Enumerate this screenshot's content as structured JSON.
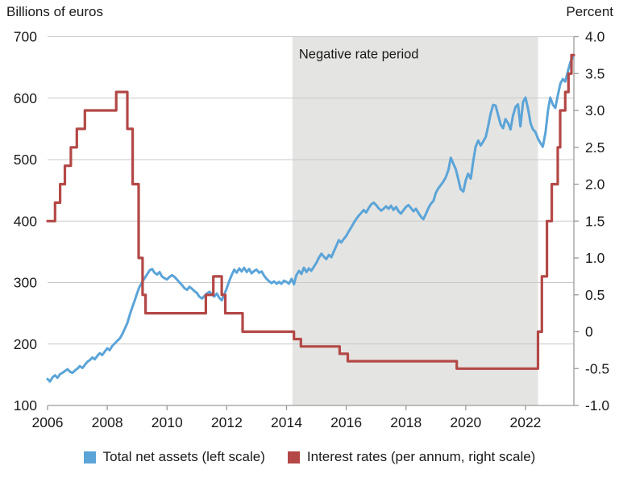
{
  "page": {
    "left_axis_title": "Billions of euros",
    "right_axis_title": "Percent"
  },
  "legend": [
    {
      "label": "Total net assets (left scale)",
      "color": "#5ba4d8"
    },
    {
      "label": "Interest rates (per annum, right scale)",
      "color": "#b34846"
    }
  ],
  "chart_data": {
    "type": "line",
    "annotation": "Negative rate period",
    "shaded_region": {
      "x_start": 2014.2,
      "x_end": 2022.42,
      "color": "#e4e4e2"
    },
    "x_axis": {
      "range": [
        2006,
        2023.62
      ],
      "ticks": [
        2006,
        2008,
        2010,
        2012,
        2014,
        2016,
        2018,
        2020,
        2022
      ]
    },
    "left_axis": {
      "title": "Billions of euros",
      "range": [
        100,
        700
      ],
      "ticks": [
        100,
        200,
        300,
        400,
        500,
        600,
        700
      ]
    },
    "right_axis": {
      "title": "Percent",
      "range": [
        -1.0,
        4.0
      ],
      "ticks": [
        4.0,
        3.5,
        3.0,
        2.5,
        2.0,
        1.5,
        1.0,
        0.5,
        0.0,
        -0.5,
        -1.0
      ],
      "tick_labels": [
        "4.0",
        "3.5",
        "3.0",
        "2.5",
        "2.0",
        "1.5",
        "1.0",
        "0.5",
        "0",
        "-0.5",
        "-1.0"
      ]
    },
    "grid_color": "#cacaca",
    "axis_color": "#9a9a9a",
    "series": [
      {
        "name": "Total net assets (left scale)",
        "axis": "left",
        "style": "line",
        "color": "#5ba4d8",
        "points": [
          [
            2006.0,
            143
          ],
          [
            2006.08,
            139
          ],
          [
            2006.17,
            146
          ],
          [
            2006.25,
            149
          ],
          [
            2006.33,
            145
          ],
          [
            2006.42,
            151
          ],
          [
            2006.5,
            153
          ],
          [
            2006.58,
            156
          ],
          [
            2006.67,
            159
          ],
          [
            2006.75,
            155
          ],
          [
            2006.83,
            153
          ],
          [
            2006.92,
            157
          ],
          [
            2007.0,
            160
          ],
          [
            2007.08,
            164
          ],
          [
            2007.17,
            161
          ],
          [
            2007.25,
            166
          ],
          [
            2007.33,
            171
          ],
          [
            2007.42,
            174
          ],
          [
            2007.5,
            178
          ],
          [
            2007.58,
            175
          ],
          [
            2007.67,
            181
          ],
          [
            2007.75,
            185
          ],
          [
            2007.83,
            182
          ],
          [
            2007.92,
            188
          ],
          [
            2008.0,
            193
          ],
          [
            2008.08,
            190
          ],
          [
            2008.17,
            197
          ],
          [
            2008.25,
            201
          ],
          [
            2008.33,
            205
          ],
          [
            2008.42,
            209
          ],
          [
            2008.5,
            216
          ],
          [
            2008.58,
            224
          ],
          [
            2008.67,
            234
          ],
          [
            2008.75,
            247
          ],
          [
            2008.83,
            259
          ],
          [
            2008.92,
            271
          ],
          [
            2009.0,
            283
          ],
          [
            2009.08,
            293
          ],
          [
            2009.17,
            301
          ],
          [
            2009.25,
            307
          ],
          [
            2009.33,
            313
          ],
          [
            2009.42,
            320
          ],
          [
            2009.5,
            322
          ],
          [
            2009.58,
            316
          ],
          [
            2009.67,
            313
          ],
          [
            2009.75,
            317
          ],
          [
            2009.83,
            310
          ],
          [
            2009.92,
            307
          ],
          [
            2010.0,
            305
          ],
          [
            2010.08,
            309
          ],
          [
            2010.17,
            312
          ],
          [
            2010.25,
            309
          ],
          [
            2010.33,
            305
          ],
          [
            2010.42,
            300
          ],
          [
            2010.5,
            296
          ],
          [
            2010.58,
            291
          ],
          [
            2010.67,
            288
          ],
          [
            2010.75,
            293
          ],
          [
            2010.83,
            290
          ],
          [
            2010.92,
            286
          ],
          [
            2011.0,
            283
          ],
          [
            2011.08,
            277
          ],
          [
            2011.17,
            274
          ],
          [
            2011.25,
            278
          ],
          [
            2011.33,
            282
          ],
          [
            2011.42,
            285
          ],
          [
            2011.5,
            281
          ],
          [
            2011.58,
            277
          ],
          [
            2011.67,
            282
          ],
          [
            2011.75,
            275
          ],
          [
            2011.83,
            271
          ],
          [
            2011.92,
            281
          ],
          [
            2012.0,
            291
          ],
          [
            2012.08,
            302
          ],
          [
            2012.17,
            313
          ],
          [
            2012.25,
            321
          ],
          [
            2012.33,
            316
          ],
          [
            2012.42,
            323
          ],
          [
            2012.5,
            318
          ],
          [
            2012.58,
            324
          ],
          [
            2012.67,
            317
          ],
          [
            2012.75,
            322
          ],
          [
            2012.83,
            315
          ],
          [
            2012.92,
            319
          ],
          [
            2013.0,
            321
          ],
          [
            2013.08,
            316
          ],
          [
            2013.17,
            318
          ],
          [
            2013.25,
            311
          ],
          [
            2013.33,
            306
          ],
          [
            2013.42,
            302
          ],
          [
            2013.5,
            299
          ],
          [
            2013.58,
            302
          ],
          [
            2013.67,
            298
          ],
          [
            2013.75,
            301
          ],
          [
            2013.83,
            298
          ],
          [
            2013.92,
            303
          ],
          [
            2014.0,
            301
          ],
          [
            2014.08,
            298
          ],
          [
            2014.17,
            306
          ],
          [
            2014.25,
            297
          ],
          [
            2014.33,
            312
          ],
          [
            2014.42,
            319
          ],
          [
            2014.5,
            314
          ],
          [
            2014.58,
            324
          ],
          [
            2014.67,
            317
          ],
          [
            2014.75,
            323
          ],
          [
            2014.83,
            319
          ],
          [
            2014.92,
            326
          ],
          [
            2015.0,
            332
          ],
          [
            2015.08,
            340
          ],
          [
            2015.17,
            347
          ],
          [
            2015.25,
            342
          ],
          [
            2015.33,
            338
          ],
          [
            2015.42,
            345
          ],
          [
            2015.5,
            341
          ],
          [
            2015.58,
            350
          ],
          [
            2015.67,
            360
          ],
          [
            2015.75,
            369
          ],
          [
            2015.83,
            365
          ],
          [
            2015.92,
            371
          ],
          [
            2016.0,
            376
          ],
          [
            2016.08,
            383
          ],
          [
            2016.17,
            390
          ],
          [
            2016.25,
            397
          ],
          [
            2016.33,
            403
          ],
          [
            2016.42,
            409
          ],
          [
            2016.5,
            413
          ],
          [
            2016.58,
            418
          ],
          [
            2016.67,
            414
          ],
          [
            2016.75,
            421
          ],
          [
            2016.83,
            427
          ],
          [
            2016.92,
            430
          ],
          [
            2017.0,
            426
          ],
          [
            2017.08,
            421
          ],
          [
            2017.17,
            417
          ],
          [
            2017.25,
            420
          ],
          [
            2017.33,
            424
          ],
          [
            2017.42,
            420
          ],
          [
            2017.5,
            425
          ],
          [
            2017.58,
            418
          ],
          [
            2017.67,
            423
          ],
          [
            2017.75,
            416
          ],
          [
            2017.83,
            412
          ],
          [
            2017.92,
            418
          ],
          [
            2018.0,
            423
          ],
          [
            2018.08,
            426
          ],
          [
            2018.17,
            421
          ],
          [
            2018.25,
            416
          ],
          [
            2018.33,
            420
          ],
          [
            2018.42,
            413
          ],
          [
            2018.5,
            407
          ],
          [
            2018.58,
            403
          ],
          [
            2018.67,
            412
          ],
          [
            2018.75,
            421
          ],
          [
            2018.83,
            428
          ],
          [
            2018.92,
            433
          ],
          [
            2019.0,
            446
          ],
          [
            2019.08,
            453
          ],
          [
            2019.17,
            459
          ],
          [
            2019.25,
            464
          ],
          [
            2019.33,
            471
          ],
          [
            2019.42,
            483
          ],
          [
            2019.5,
            503
          ],
          [
            2019.58,
            494
          ],
          [
            2019.67,
            484
          ],
          [
            2019.75,
            468
          ],
          [
            2019.83,
            452
          ],
          [
            2019.92,
            448
          ],
          [
            2020.0,
            466
          ],
          [
            2020.08,
            477
          ],
          [
            2020.17,
            469
          ],
          [
            2020.25,
            497
          ],
          [
            2020.33,
            521
          ],
          [
            2020.42,
            531
          ],
          [
            2020.5,
            523
          ],
          [
            2020.58,
            529
          ],
          [
            2020.67,
            537
          ],
          [
            2020.75,
            554
          ],
          [
            2020.83,
            574
          ],
          [
            2020.92,
            589
          ],
          [
            2021.0,
            588
          ],
          [
            2021.08,
            573
          ],
          [
            2021.17,
            557
          ],
          [
            2021.25,
            551
          ],
          [
            2021.33,
            566
          ],
          [
            2021.42,
            559
          ],
          [
            2021.5,
            549
          ],
          [
            2021.58,
            571
          ],
          [
            2021.67,
            586
          ],
          [
            2021.75,
            590
          ],
          [
            2021.83,
            554
          ],
          [
            2021.92,
            594
          ],
          [
            2022.0,
            601
          ],
          [
            2022.08,
            584
          ],
          [
            2022.17,
            559
          ],
          [
            2022.25,
            549
          ],
          [
            2022.33,
            545
          ],
          [
            2022.42,
            534
          ],
          [
            2022.5,
            527
          ],
          [
            2022.58,
            521
          ],
          [
            2022.67,
            544
          ],
          [
            2022.75,
            579
          ],
          [
            2022.83,
            601
          ],
          [
            2022.92,
            589
          ],
          [
            2023.0,
            584
          ],
          [
            2023.08,
            604
          ],
          [
            2023.17,
            624
          ],
          [
            2023.25,
            631
          ],
          [
            2023.33,
            627
          ],
          [
            2023.42,
            644
          ],
          [
            2023.5,
            658
          ],
          [
            2023.58,
            666
          ]
        ]
      },
      {
        "name": "Interest rates (per annum, right scale)",
        "axis": "right",
        "style": "step",
        "color": "#b34846",
        "steps": [
          [
            2006.0,
            1.5
          ],
          [
            2006.25,
            1.75
          ],
          [
            2006.42,
            2.0
          ],
          [
            2006.58,
            2.25
          ],
          [
            2006.78,
            2.5
          ],
          [
            2006.98,
            2.75
          ],
          [
            2007.25,
            3.0
          ],
          [
            2008.3,
            3.25
          ],
          [
            2008.67,
            2.75
          ],
          [
            2008.85,
            2.0
          ],
          [
            2009.05,
            1.0
          ],
          [
            2009.18,
            0.5
          ],
          [
            2009.28,
            0.25
          ],
          [
            2011.3,
            0.5
          ],
          [
            2011.55,
            0.75
          ],
          [
            2011.83,
            0.5
          ],
          [
            2011.95,
            0.25
          ],
          [
            2012.53,
            0.0
          ],
          [
            2014.25,
            -0.1
          ],
          [
            2014.48,
            -0.2
          ],
          [
            2015.78,
            -0.3
          ],
          [
            2016.05,
            -0.4
          ],
          [
            2019.7,
            -0.5
          ],
          [
            2022.42,
            0.0
          ],
          [
            2022.55,
            0.75
          ],
          [
            2022.72,
            1.5
          ],
          [
            2022.88,
            2.0
          ],
          [
            2023.08,
            2.5
          ],
          [
            2023.16,
            3.0
          ],
          [
            2023.33,
            3.25
          ],
          [
            2023.44,
            3.5
          ],
          [
            2023.54,
            3.75
          ]
        ],
        "end_x": 2023.62
      }
    ]
  }
}
